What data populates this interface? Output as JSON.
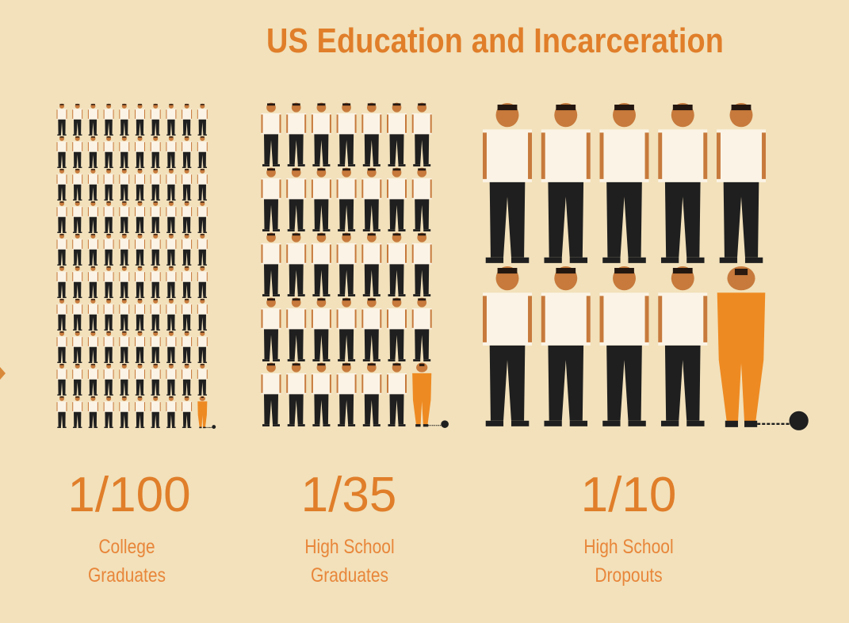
{
  "title": "US Education and Incarceration",
  "colors": {
    "background": "#f2e1bb",
    "accent": "#e07e2a",
    "figure_free": "#1f1f1f",
    "shirt": "#fbf4e6",
    "skin": "#c77a3c",
    "figure_incarcerated": "#ee8a22"
  },
  "chart_data": {
    "type": "pictograph",
    "title": "US Education and Incarceration",
    "unit": "people figures; highlighted orange figure = incarcerated",
    "groups": [
      {
        "category": "College Graduates",
        "label_lines": [
          "College",
          "Graduates"
        ],
        "rate_label": "1/100",
        "incarcerated": 1,
        "total": 100
      },
      {
        "category": "High School Graduates",
        "label_lines": [
          "High School",
          "Graduates"
        ],
        "rate_label": "1/35",
        "incarcerated": 1,
        "total": 35
      },
      {
        "category": "High School Dropouts",
        "label_lines": [
          "High School",
          "Dropouts"
        ],
        "rate_label": "1/10",
        "incarcerated": 1,
        "total": 10
      }
    ]
  }
}
